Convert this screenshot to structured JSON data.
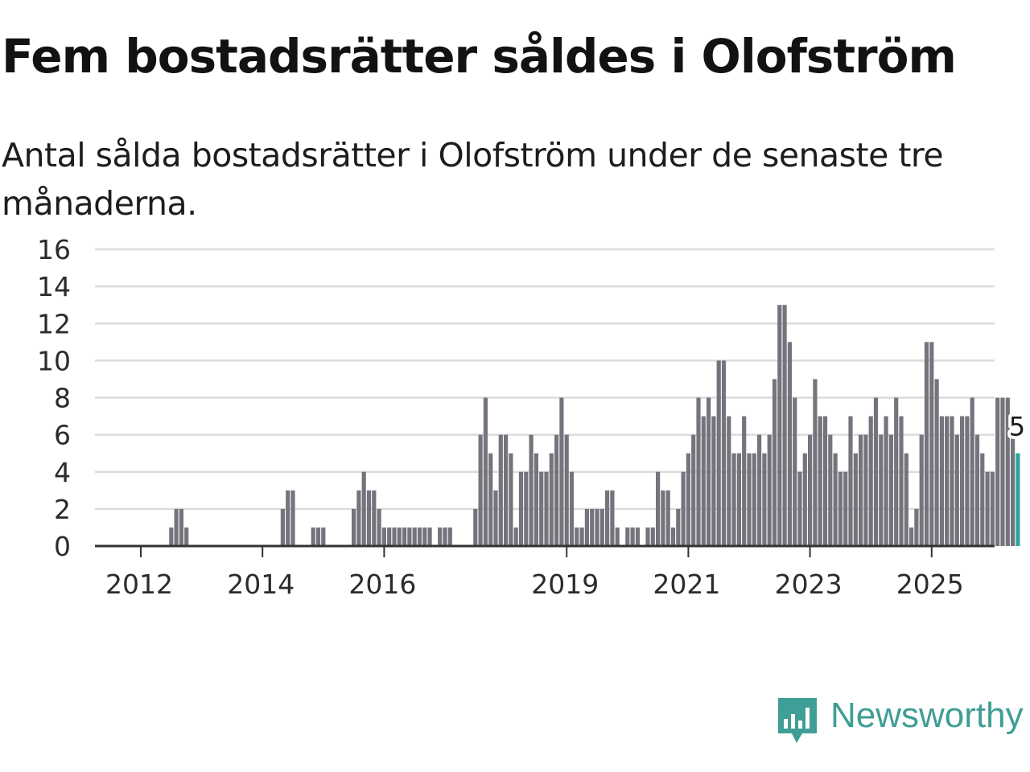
{
  "title": "Fem bostadsrätter såldes i Olofström",
  "subtitle": "Antal sålda bostadsrätter i Olofström under de senaste tre månaderna.",
  "brand": {
    "name": "Newsworthy",
    "icon": "newsworthy-logo-icon",
    "color": "#3f9e96"
  },
  "colors": {
    "bar": "#75747d",
    "highlight": "#2ba59c",
    "grid": "#dcdcdc",
    "axis": "#333333"
  },
  "chart_data": {
    "type": "bar",
    "title": "Fem bostadsrätter såldes i Olofström",
    "xlabel": "",
    "ylabel": "",
    "ylim": [
      0,
      16
    ],
    "yticks": [
      "0",
      "2",
      "4",
      "6",
      "8",
      "10",
      "12",
      "14",
      "16"
    ],
    "xticks": [
      {
        "label": "2012",
        "index": 3
      },
      {
        "label": "2014",
        "index": 27
      },
      {
        "label": "2016",
        "index": 51
      },
      {
        "label": "2019",
        "index": 87
      },
      {
        "label": "2021",
        "index": 111
      },
      {
        "label": "2023",
        "index": 135
      },
      {
        "label": "2025",
        "index": 159
      }
    ],
    "grid": true,
    "highlight_label": "5",
    "values": [
      0,
      0,
      0,
      0,
      0,
      0,
      0,
      0,
      0,
      1,
      2,
      2,
      1,
      0,
      0,
      0,
      0,
      0,
      0,
      0,
      0,
      0,
      0,
      0,
      0,
      0,
      0,
      0,
      0,
      0,
      0,
      2,
      3,
      3,
      0,
      0,
      0,
      1,
      1,
      1,
      0,
      0,
      0,
      0,
      0,
      2,
      3,
      4,
      3,
      3,
      2,
      1,
      1,
      1,
      1,
      1,
      1,
      1,
      1,
      1,
      1,
      0,
      1,
      1,
      1,
      0,
      0,
      0,
      0,
      2,
      6,
      8,
      5,
      3,
      6,
      6,
      5,
      1,
      4,
      4,
      6,
      5,
      4,
      4,
      5,
      6,
      8,
      6,
      4,
      1,
      1,
      2,
      2,
      2,
      2,
      3,
      3,
      1,
      0,
      1,
      1,
      1,
      0,
      1,
      1,
      4,
      3,
      3,
      1,
      2,
      4,
      5,
      6,
      8,
      7,
      8,
      7,
      10,
      10,
      7,
      5,
      5,
      7,
      5,
      5,
      6,
      5,
      6,
      9,
      13,
      13,
      11,
      8,
      4,
      5,
      6,
      9,
      7,
      7,
      6,
      5,
      4,
      4,
      7,
      5,
      6,
      6,
      7,
      8,
      6,
      7,
      6,
      8,
      7,
      5,
      1,
      2,
      6,
      11,
      11,
      9,
      7,
      7,
      7,
      6,
      7,
      7,
      8,
      6,
      5,
      4,
      4,
      8,
      8,
      8,
      6,
      5
    ],
    "highlight_index": 176
  }
}
